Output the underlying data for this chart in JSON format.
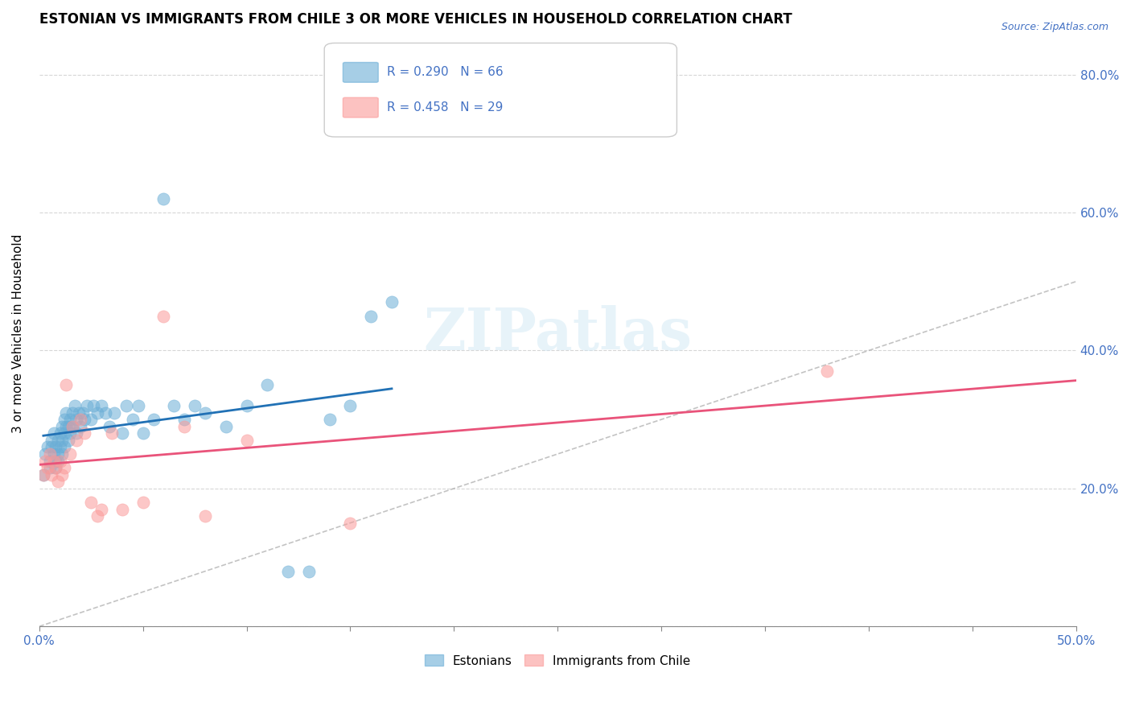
{
  "title": "ESTONIAN VS IMMIGRANTS FROM CHILE 3 OR MORE VEHICLES IN HOUSEHOLD CORRELATION CHART",
  "source": "Source: ZipAtlas.com",
  "xlabel": "",
  "ylabel": "3 or more Vehicles in Household",
  "xlim": [
    0.0,
    0.5
  ],
  "ylim": [
    0.0,
    0.85
  ],
  "xticks": [
    0.0,
    0.05,
    0.1,
    0.15,
    0.2,
    0.25,
    0.3,
    0.35,
    0.4,
    0.45,
    0.5
  ],
  "xticklabels": [
    "0.0%",
    "",
    "",
    "",
    "",
    "",
    "",
    "",
    "",
    "",
    "50.0%"
  ],
  "ytick_positions": [
    0.0,
    0.2,
    0.4,
    0.6,
    0.8
  ],
  "ytick_labels_right": [
    "",
    "20.0%",
    "40.0%",
    "60.0%",
    "80.0%"
  ],
  "R_estonian": 0.29,
  "N_estonian": 66,
  "R_chile": 0.458,
  "N_chile": 29,
  "color_estonian": "#6baed6",
  "color_chile": "#fb9a99",
  "color_estonian_line": "#2171b5",
  "color_chile_line": "#e9537a",
  "color_diagonal": "#aaaaaa",
  "legend_label_estonian": "Estonians",
  "legend_label_chile": "Immigrants from Chile",
  "watermark": "ZIPatlas",
  "estonian_x": [
    0.002,
    0.003,
    0.004,
    0.005,
    0.005,
    0.006,
    0.006,
    0.007,
    0.007,
    0.008,
    0.008,
    0.008,
    0.009,
    0.009,
    0.009,
    0.01,
    0.01,
    0.011,
    0.011,
    0.011,
    0.012,
    0.012,
    0.012,
    0.013,
    0.013,
    0.014,
    0.014,
    0.015,
    0.015,
    0.016,
    0.016,
    0.017,
    0.018,
    0.018,
    0.019,
    0.02,
    0.021,
    0.022,
    0.023,
    0.025,
    0.026,
    0.028,
    0.03,
    0.032,
    0.034,
    0.036,
    0.04,
    0.042,
    0.045,
    0.048,
    0.05,
    0.055,
    0.06,
    0.065,
    0.07,
    0.075,
    0.08,
    0.09,
    0.1,
    0.11,
    0.12,
    0.13,
    0.14,
    0.15,
    0.16,
    0.17
  ],
  "estonian_y": [
    0.22,
    0.25,
    0.26,
    0.24,
    0.23,
    0.27,
    0.26,
    0.28,
    0.25,
    0.24,
    0.26,
    0.23,
    0.27,
    0.25,
    0.24,
    0.28,
    0.26,
    0.29,
    0.27,
    0.25,
    0.3,
    0.28,
    0.26,
    0.31,
    0.29,
    0.29,
    0.27,
    0.3,
    0.28,
    0.31,
    0.29,
    0.32,
    0.3,
    0.28,
    0.31,
    0.29,
    0.31,
    0.3,
    0.32,
    0.3,
    0.32,
    0.31,
    0.32,
    0.31,
    0.29,
    0.31,
    0.28,
    0.32,
    0.3,
    0.32,
    0.28,
    0.3,
    0.62,
    0.32,
    0.3,
    0.32,
    0.31,
    0.29,
    0.32,
    0.35,
    0.08,
    0.08,
    0.3,
    0.32,
    0.45,
    0.47
  ],
  "chile_x": [
    0.002,
    0.003,
    0.004,
    0.005,
    0.006,
    0.007,
    0.008,
    0.009,
    0.01,
    0.011,
    0.012,
    0.013,
    0.015,
    0.016,
    0.018,
    0.02,
    0.022,
    0.025,
    0.028,
    0.03,
    0.035,
    0.04,
    0.05,
    0.06,
    0.07,
    0.08,
    0.1,
    0.15,
    0.38
  ],
  "chile_y": [
    0.22,
    0.24,
    0.23,
    0.25,
    0.22,
    0.24,
    0.23,
    0.21,
    0.24,
    0.22,
    0.23,
    0.35,
    0.25,
    0.29,
    0.27,
    0.3,
    0.28,
    0.18,
    0.16,
    0.17,
    0.28,
    0.17,
    0.18,
    0.45,
    0.29,
    0.16,
    0.27,
    0.15,
    0.37
  ]
}
